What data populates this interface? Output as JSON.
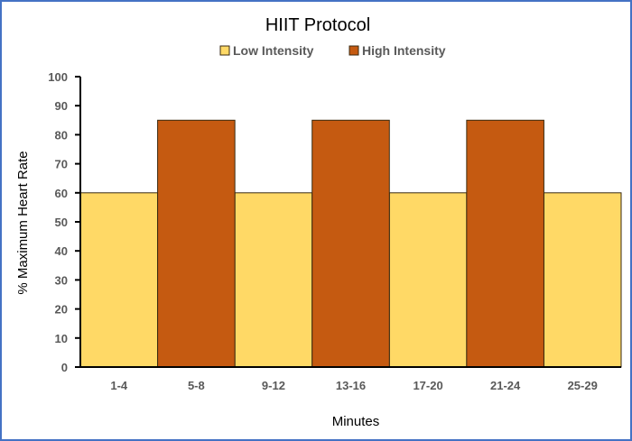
{
  "chart_data": {
    "type": "bar",
    "title": "HIIT Protocol",
    "xlabel": "Minutes",
    "ylabel": "% Maximum Heart Rate",
    "ylim": [
      0,
      100
    ],
    "yticks": [
      "0",
      "10",
      "20",
      "30",
      "40",
      "50",
      "60",
      "70",
      "80",
      "90",
      "100"
    ],
    "categories": [
      "1-4",
      "5-8",
      "9-12",
      "13-16",
      "17-20",
      "21-24",
      "25-29"
    ],
    "series": [
      {
        "name": "Low Intensity",
        "color": "#FFD966",
        "values": [
          60,
          null,
          60,
          null,
          60,
          null,
          60
        ]
      },
      {
        "name": "High Intensity",
        "color": "#C55A11",
        "values": [
          null,
          85,
          null,
          85,
          null,
          85,
          null
        ]
      }
    ],
    "legend": "top",
    "grid": false
  }
}
